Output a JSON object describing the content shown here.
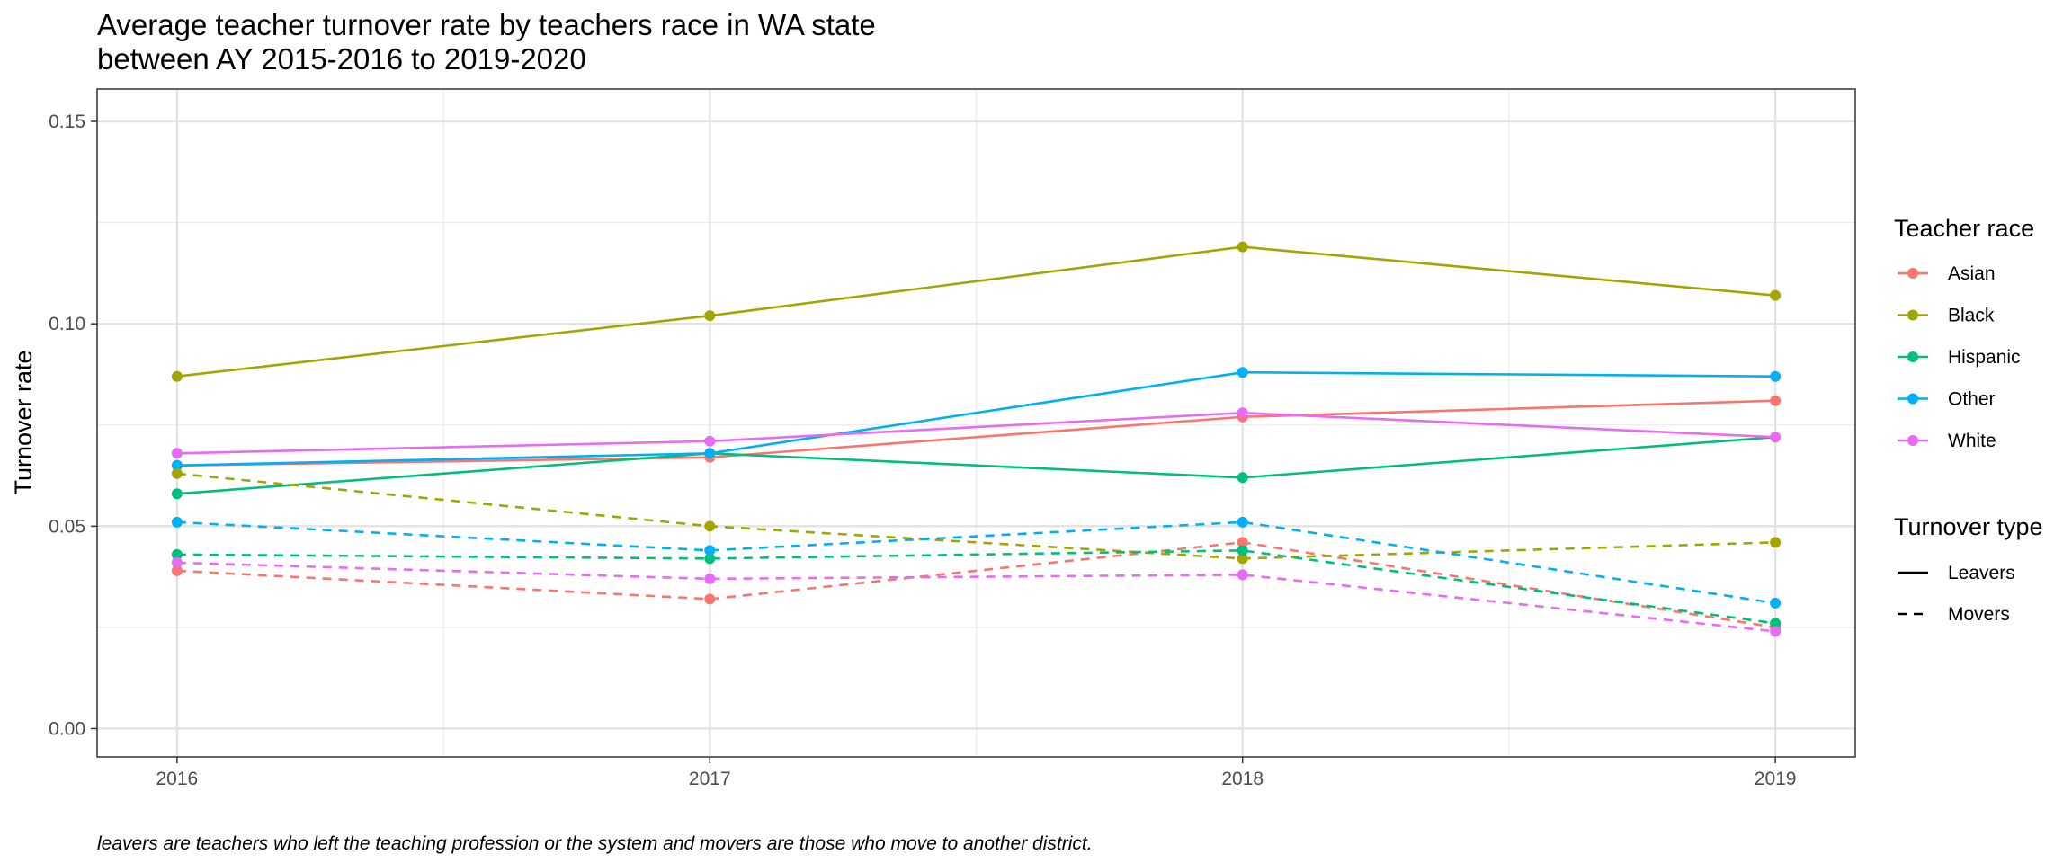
{
  "chart_data": {
    "type": "line",
    "title": "Average teacher turnover rate by teachers race in WA state",
    "subtitle": "between AY 2015-2016 to 2019-2020",
    "xlabel": "",
    "ylabel": "Turnover rate",
    "caption": "leavers are teachers who left the teaching profession or the system and movers are those who move to another district.",
    "x": [
      2016,
      2017,
      2018,
      2019
    ],
    "x_tick_labels": [
      "2016",
      "2017",
      "2018",
      "2019"
    ],
    "xlim": [
      2015.85,
      2019.15
    ],
    "ylim": [
      -0.007,
      0.158
    ],
    "y_ticks": [
      0.0,
      0.05,
      0.1,
      0.15
    ],
    "y_tick_labels": [
      "0.00",
      "0.05",
      "0.10",
      "0.15"
    ],
    "grid": true,
    "legend_placement": "right",
    "legends": {
      "color": {
        "title": "Teacher race",
        "entries": [
          {
            "label": "Asian",
            "color": "#F8766D"
          },
          {
            "label": "Black",
            "color": "#A3A500"
          },
          {
            "label": "Hispanic",
            "color": "#00BF7D"
          },
          {
            "label": "Other",
            "color": "#00B0F6"
          },
          {
            "label": "White",
            "color": "#E76BF3"
          }
        ]
      },
      "linetype": {
        "title": "Turnover type",
        "entries": [
          {
            "label": "Leavers",
            "dash": "solid"
          },
          {
            "label": "Movers",
            "dash": "dashed"
          }
        ]
      }
    },
    "series": [
      {
        "race": "Asian",
        "type": "Leavers",
        "color": "#F8766D",
        "dash": "solid",
        "values": [
          0.065,
          0.067,
          0.077,
          0.081
        ]
      },
      {
        "race": "Black",
        "type": "Leavers",
        "color": "#A3A500",
        "dash": "solid",
        "values": [
          0.087,
          0.102,
          0.119,
          0.107
        ]
      },
      {
        "race": "Hispanic",
        "type": "Leavers",
        "color": "#00BF7D",
        "dash": "solid",
        "values": [
          0.058,
          0.068,
          0.062,
          0.072
        ]
      },
      {
        "race": "Other",
        "type": "Leavers",
        "color": "#00B0F6",
        "dash": "solid",
        "values": [
          0.065,
          0.068,
          0.088,
          0.087
        ]
      },
      {
        "race": "White",
        "type": "Leavers",
        "color": "#E76BF3",
        "dash": "solid",
        "values": [
          0.068,
          0.071,
          0.078,
          0.072
        ]
      },
      {
        "race": "Asian",
        "type": "Movers",
        "color": "#F8766D",
        "dash": "dashed",
        "values": [
          0.039,
          0.032,
          0.046,
          0.025
        ]
      },
      {
        "race": "Black",
        "type": "Movers",
        "color": "#A3A500",
        "dash": "dashed",
        "values": [
          0.063,
          0.05,
          0.042,
          0.046
        ]
      },
      {
        "race": "Hispanic",
        "type": "Movers",
        "color": "#00BF7D",
        "dash": "dashed",
        "values": [
          0.043,
          0.042,
          0.044,
          0.026
        ]
      },
      {
        "race": "Other",
        "type": "Movers",
        "color": "#00B0F6",
        "dash": "dashed",
        "values": [
          0.051,
          0.044,
          0.051,
          0.031
        ]
      },
      {
        "race": "White",
        "type": "Movers",
        "color": "#E76BF3",
        "dash": "dashed",
        "values": [
          0.041,
          0.037,
          0.038,
          0.024
        ]
      }
    ]
  }
}
